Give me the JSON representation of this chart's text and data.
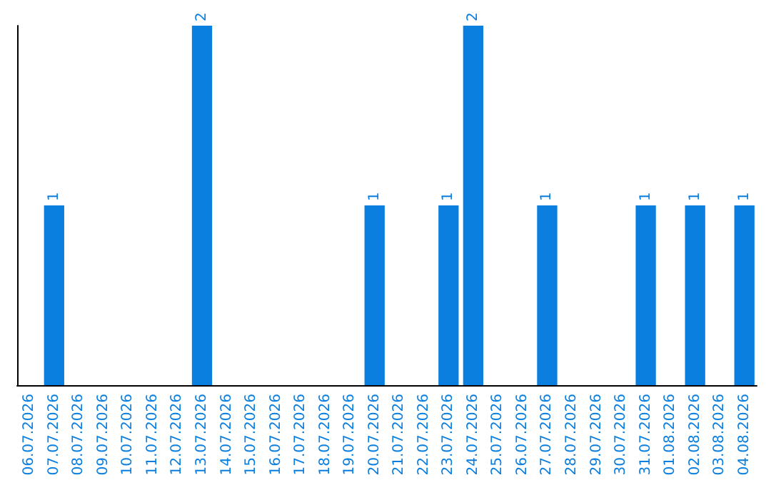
{
  "chart_data": {
    "type": "bar",
    "categories": [
      "06.07.2026",
      "07.07.2026",
      "08.07.2026",
      "09.07.2026",
      "10.07.2026",
      "11.07.2026",
      "12.07.2026",
      "13.07.2026",
      "14.07.2026",
      "15.07.2026",
      "16.07.2026",
      "17.07.2026",
      "18.07.2026",
      "19.07.2026",
      "20.07.2026",
      "21.07.2026",
      "22.07.2026",
      "23.07.2026",
      "24.07.2026",
      "25.07.2026",
      "26.07.2026",
      "27.07.2026",
      "28.07.2026",
      "29.07.2026",
      "30.07.2026",
      "31.07.2026",
      "01.08.2026",
      "02.08.2026",
      "03.08.2026",
      "04.08.2026"
    ],
    "values": [
      0,
      1,
      0,
      0,
      0,
      0,
      0,
      2,
      0,
      0,
      0,
      0,
      0,
      0,
      1,
      0,
      0,
      1,
      2,
      0,
      0,
      1,
      0,
      0,
      0,
      1,
      0,
      1,
      0,
      1
    ],
    "value_labels": [
      null,
      "1",
      null,
      null,
      null,
      null,
      null,
      "2",
      null,
      null,
      null,
      null,
      null,
      null,
      "1",
      null,
      null,
      "1",
      "2",
      null,
      null,
      "1",
      null,
      null,
      null,
      "1",
      null,
      "1",
      null,
      "1"
    ],
    "color": "#0b7fe0",
    "tick_labels": "x"
  }
}
